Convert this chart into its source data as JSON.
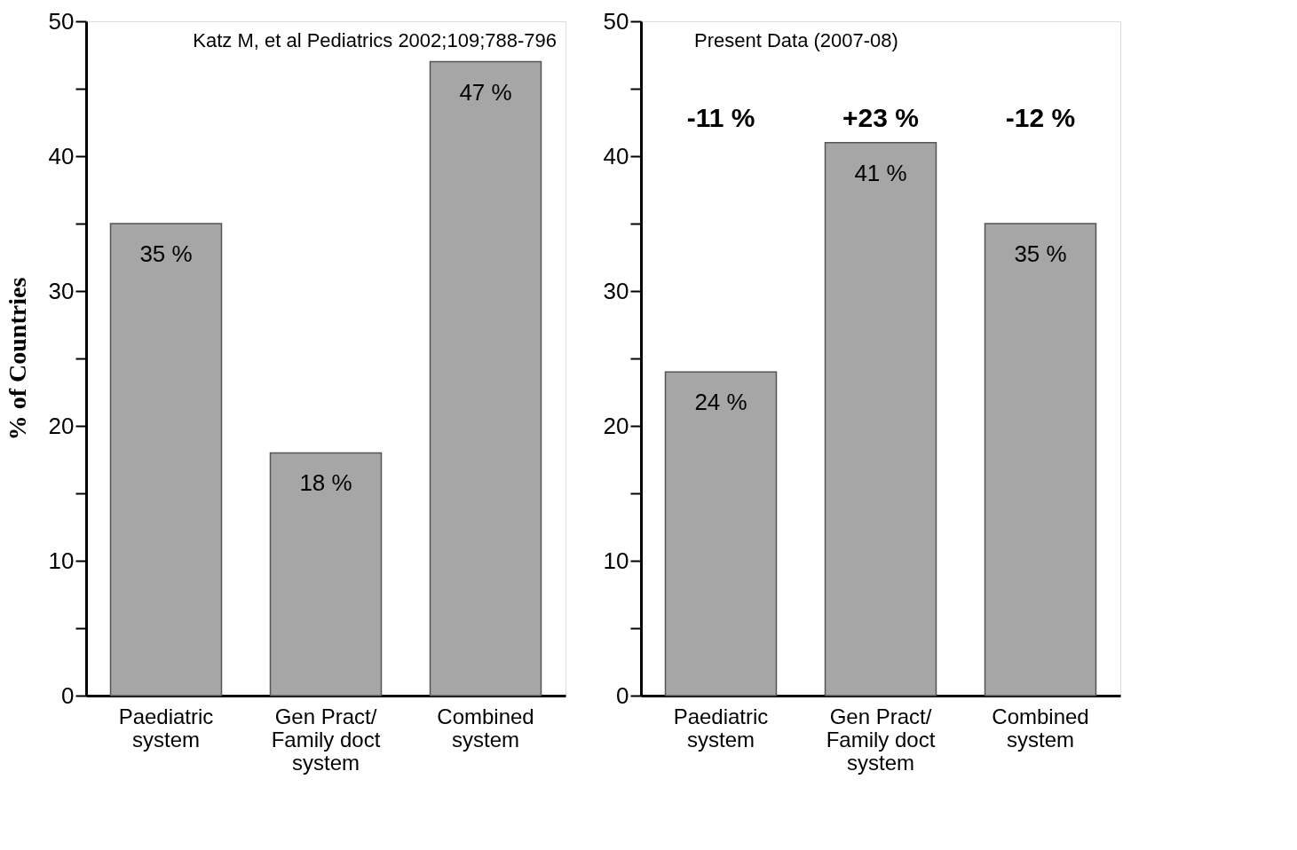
{
  "chart_data": [
    {
      "type": "bar",
      "ylabel": "% of Countries",
      "categories": [
        "Paediatric\nsystem",
        "Gen Pract/\nFamily doct\nsystem",
        "Combined\nsystem"
      ],
      "values": [
        35,
        18,
        47
      ],
      "value_labels": [
        "35 %",
        "18 %",
        "47 %"
      ],
      "color": "#a6a6a6",
      "ylim": [
        0,
        50
      ],
      "yticks": [
        0,
        {
          "value": 5,
          "label": null
        },
        10,
        {
          "value": 15,
          "label": null
        },
        20,
        {
          "value": 25,
          "label": null
        },
        30,
        {
          "value": 35,
          "label": null
        },
        40,
        {
          "value": 45,
          "label": null
        },
        50
      ],
      "grid": false,
      "annotations": [
        "Katz M, et al Pediatrics 2002;109;788-796"
      ]
    },
    {
      "type": "bar",
      "categories": [
        "Paediatric\nsystem",
        "Gen Pract/\nFamily doct\nsystem",
        "Combined\nsystem"
      ],
      "values": [
        24,
        41,
        35
      ],
      "value_labels": [
        "24 %",
        "41 %",
        "35 %"
      ],
      "color": "#a6a6a6",
      "ylim": [
        0,
        50
      ],
      "yticks": [
        0,
        {
          "value": 5,
          "label": null
        },
        10,
        {
          "value": 15,
          "label": null
        },
        20,
        {
          "value": 25,
          "label": null
        },
        30,
        {
          "value": 35,
          "label": null
        },
        40,
        {
          "value": 45,
          "label": null
        },
        50
      ],
      "grid": false,
      "annotations": [
        "Present Data (2007-08)",
        "-11 %",
        "+23 %",
        "-12 %"
      ]
    }
  ]
}
